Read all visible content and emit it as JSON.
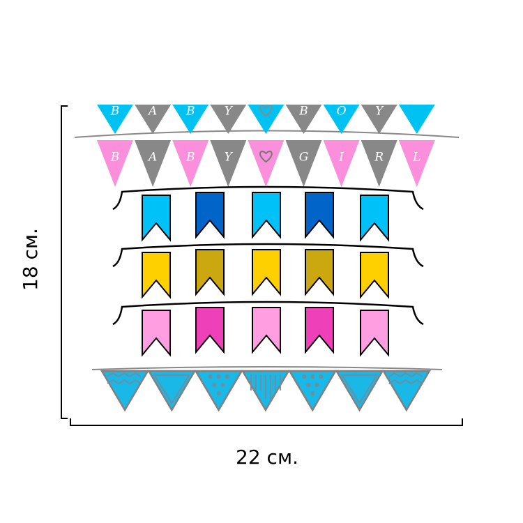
{
  "dimensions": {
    "height": "18 см.",
    "width": "22 см."
  },
  "garlands": {
    "boy": [
      "B",
      "A",
      "B",
      "Y",
      null,
      "B",
      "O",
      "Y",
      null
    ],
    "girl": [
      "B",
      "A",
      "B",
      "Y",
      null,
      "G",
      "I",
      "R",
      "L"
    ]
  }
}
